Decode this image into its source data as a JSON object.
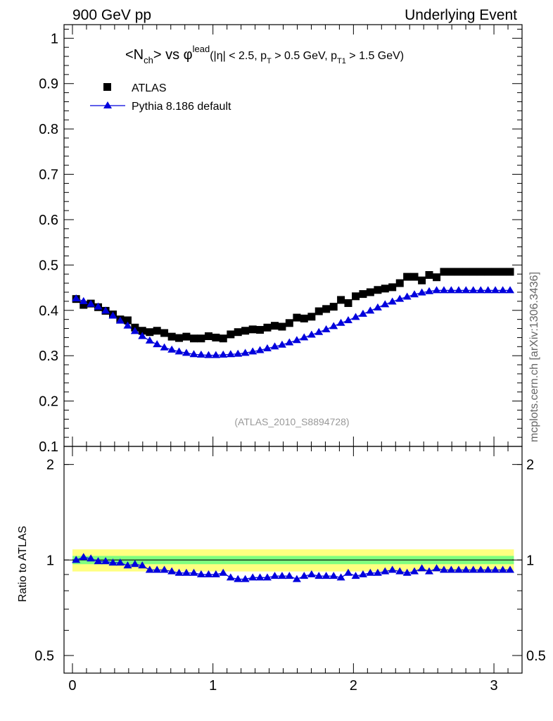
{
  "header": {
    "left": "900 GeV pp",
    "right": "Underlying Event"
  },
  "side_label": "mcplots.cern.ch [arXiv:1306.3436]",
  "analysis_tag": "(ATLAS_2010_S8894728)",
  "colors": {
    "data": "#000000",
    "mc": "#0000dd",
    "band_inner": "#7fff7f",
    "band_outer": "#ffff80"
  },
  "chart_data": [
    {
      "type": "scatter",
      "title_parts": {
        "base": "<N",
        "sub1": "ch",
        "mid": "> vs φ",
        "sup": "lead",
        "cuts_a": "(|η| < 2.5, p",
        "sub2": "T",
        "cuts_b": " > 0.5 GeV, p",
        "sub3": "T1",
        "cuts_c": " > 1.5 GeV)"
      },
      "xlim": [
        -0.06,
        3.2
      ],
      "ylim": [
        0.1,
        1.03
      ],
      "yticks": [
        "0.1",
        "0.2",
        "0.3",
        "0.4",
        "0.5",
        "0.6",
        "0.7",
        "0.8",
        "0.9",
        "1"
      ],
      "legend": [
        {
          "name": "ATLAS",
          "marker": "square"
        },
        {
          "name": "Pythia 8.186 default",
          "marker": "triangle"
        }
      ],
      "x": [
        0.026,
        0.079,
        0.131,
        0.183,
        0.236,
        0.288,
        0.34,
        0.393,
        0.445,
        0.497,
        0.55,
        0.602,
        0.654,
        0.707,
        0.759,
        0.811,
        0.864,
        0.916,
        0.969,
        1.021,
        1.073,
        1.126,
        1.178,
        1.23,
        1.283,
        1.335,
        1.387,
        1.44,
        1.492,
        1.544,
        1.597,
        1.649,
        1.702,
        1.754,
        1.806,
        1.859,
        1.911,
        1.963,
        2.016,
        2.068,
        2.12,
        2.173,
        2.225,
        2.277,
        2.33,
        2.382,
        2.434,
        2.487,
        2.539,
        2.592,
        2.644,
        2.696,
        2.749,
        2.801,
        2.853,
        2.906,
        2.958,
        3.01,
        3.063,
        3.115
      ],
      "series": [
        {
          "name": "ATLAS",
          "values": [
            0.425,
            0.412,
            0.415,
            0.407,
            0.399,
            0.391,
            0.38,
            0.378,
            0.362,
            0.355,
            0.352,
            0.355,
            0.35,
            0.342,
            0.339,
            0.342,
            0.338,
            0.338,
            0.343,
            0.34,
            0.338,
            0.347,
            0.352,
            0.355,
            0.358,
            0.357,
            0.362,
            0.366,
            0.364,
            0.372,
            0.384,
            0.382,
            0.386,
            0.398,
            0.403,
            0.408,
            0.423,
            0.416,
            0.431,
            0.436,
            0.44,
            0.445,
            0.448,
            0.451,
            0.46,
            0.474,
            0.474,
            0.466,
            0.478,
            0.473,
            0.485,
            0.485,
            0.485,
            0.485,
            0.485,
            0.485,
            0.485,
            0.485,
            0.485,
            0.485
          ]
        },
        {
          "name": "Pythia 8.186 default",
          "values": [
            0.426,
            0.42,
            0.414,
            0.408,
            0.399,
            0.388,
            0.377,
            0.366,
            0.354,
            0.343,
            0.333,
            0.325,
            0.318,
            0.313,
            0.309,
            0.306,
            0.303,
            0.302,
            0.301,
            0.301,
            0.302,
            0.303,
            0.304,
            0.306,
            0.309,
            0.312,
            0.316,
            0.32,
            0.324,
            0.329,
            0.334,
            0.34,
            0.346,
            0.352,
            0.358,
            0.365,
            0.372,
            0.378,
            0.385,
            0.392,
            0.399,
            0.406,
            0.413,
            0.419,
            0.425,
            0.43,
            0.435,
            0.439,
            0.442,
            0.444,
            0.444,
            0.444,
            0.444,
            0.444,
            0.444,
            0.444,
            0.444,
            0.444,
            0.444,
            0.444
          ]
        }
      ]
    },
    {
      "type": "scatter",
      "ylabel": "Ratio to ATLAS",
      "ylim": [
        0.44,
        2.28
      ],
      "log_y": true,
      "xticks": [
        "0",
        "1",
        "2",
        "3"
      ],
      "yticks": [
        "0.5",
        "1",
        "2"
      ],
      "band_inner": 0.03,
      "band_outer": 0.08,
      "series": [
        {
          "name": "Pythia 8.186 default",
          "values": [
            1.0,
            1.02,
            1.01,
            0.99,
            0.99,
            0.98,
            0.98,
            0.96,
            0.97,
            0.96,
            0.93,
            0.93,
            0.93,
            0.92,
            0.91,
            0.91,
            0.91,
            0.9,
            0.9,
            0.9,
            0.91,
            0.88,
            0.87,
            0.87,
            0.88,
            0.88,
            0.88,
            0.89,
            0.89,
            0.89,
            0.87,
            0.89,
            0.9,
            0.89,
            0.89,
            0.89,
            0.88,
            0.91,
            0.89,
            0.9,
            0.91,
            0.91,
            0.92,
            0.93,
            0.92,
            0.91,
            0.92,
            0.94,
            0.92,
            0.94,
            0.93,
            0.93,
            0.93,
            0.93,
            0.93,
            0.93,
            0.93,
            0.93,
            0.93,
            0.93
          ]
        }
      ]
    }
  ]
}
